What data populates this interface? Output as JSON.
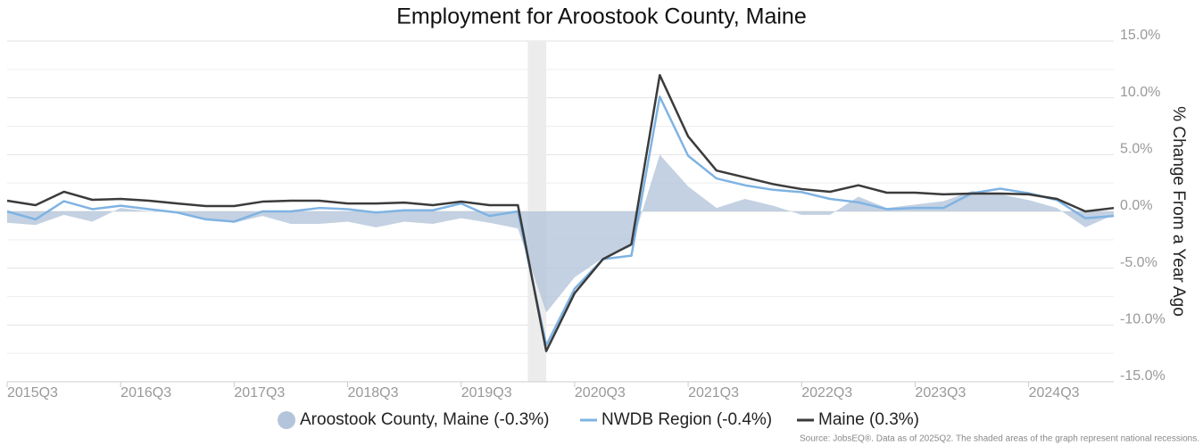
{
  "chart_data": {
    "type": "line",
    "title": "Employment for Aroostook County, Maine",
    "y_label": "% Change From a Year Ago",
    "source": "Source: JobsEQ®. Data as of 2025Q2. The shaded areas of the graph represent national recessions.",
    "categories": [
      "2015Q3",
      null,
      null,
      null,
      "2016Q3",
      null,
      null,
      null,
      "2017Q3",
      null,
      null,
      null,
      "2018Q3",
      null,
      null,
      null,
      "2019Q3",
      null,
      null,
      null,
      "2020Q3",
      null,
      null,
      null,
      "2021Q3",
      null,
      null,
      null,
      "2022Q3",
      null,
      null,
      null,
      "2023Q3",
      null,
      null,
      null,
      "2024Q3",
      null,
      null,
      null
    ],
    "recession": {
      "start": 18,
      "end": 19
    },
    "series": [
      {
        "name": "Aroostook County, Maine (-0.3%)",
        "kind": "area",
        "color": "#b4c5db",
        "values": [
          -1.0,
          -1.2,
          -0.3,
          -0.9,
          0.3,
          0.0,
          -0.1,
          -0.7,
          -1.0,
          -0.4,
          -1.1,
          -1.1,
          -0.9,
          -1.4,
          -0.9,
          -1.1,
          -0.6,
          -1.0,
          -1.5,
          -8.9,
          -5.8,
          -4.1,
          -3.1,
          5.0,
          2.2,
          0.3,
          1.1,
          0.5,
          -0.3,
          -0.3,
          1.3,
          0.3,
          0.6,
          0.9,
          1.8,
          1.5,
          1.0,
          0.3,
          -1.4,
          -0.3
        ]
      },
      {
        "name": "NWDB Region (-0.4%)",
        "kind": "line",
        "color": "#7fb3e3",
        "values": [
          0.0,
          -0.7,
          0.9,
          0.2,
          0.5,
          0.2,
          -0.1,
          -0.7,
          -0.9,
          0.0,
          0.0,
          0.3,
          0.2,
          -0.1,
          0.1,
          0.1,
          0.7,
          -0.4,
          0.0,
          -11.8,
          -6.8,
          -4.2,
          -3.9,
          10.1,
          4.9,
          2.9,
          2.3,
          1.9,
          1.7,
          1.1,
          0.8,
          0.2,
          0.3,
          0.3,
          1.6,
          2.0,
          1.6,
          1.0,
          -0.6,
          -0.4
        ]
      },
      {
        "name": "Maine (0.3%)",
        "kind": "line",
        "color": "#3b3b3b",
        "values": [
          0.94,
          0.55,
          1.73,
          1.02,
          1.1,
          0.94,
          0.7,
          0.47,
          0.47,
          0.86,
          0.94,
          0.94,
          0.7,
          0.7,
          0.78,
          0.55,
          0.86,
          0.55,
          0.55,
          -12.3,
          -7.2,
          -4.2,
          -2.9,
          12.0,
          6.6,
          3.6,
          3.0,
          2.4,
          1.96,
          1.73,
          2.3,
          1.65,
          1.65,
          1.5,
          1.57,
          1.57,
          1.5,
          1.1,
          0.0,
          0.3
        ]
      }
    ],
    "ylim": [
      -15,
      15
    ],
    "yticks": [
      {
        "value": -15,
        "label": "-15.0%"
      },
      {
        "value": -10,
        "label": "-10.0%"
      },
      {
        "value": -5,
        "label": "-5.0%"
      },
      {
        "value": 0,
        "label": "0.0%"
      },
      {
        "value": 5,
        "label": "5.0%"
      },
      {
        "value": 10,
        "label": "10.0%"
      },
      {
        "value": 15,
        "label": "15.0%"
      }
    ],
    "minor_yticks": [
      -12.5,
      -7.5,
      -2.5,
      2.5,
      7.5,
      12.5
    ],
    "grid": true
  }
}
